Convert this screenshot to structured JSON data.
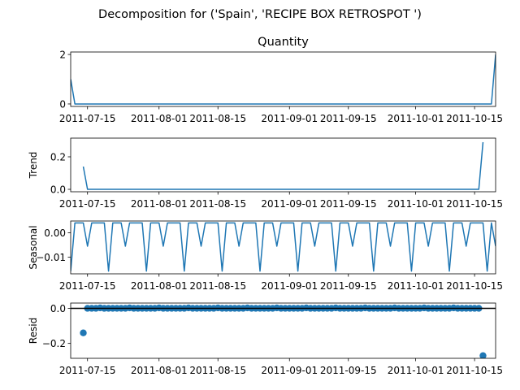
{
  "figure": {
    "suptitle": "Decomposition for ('Spain', 'RECIPE BOX RETROSPOT ')"
  },
  "colors": {
    "line": "#1f77b4",
    "zero_line": "#000000",
    "axes": "#000000"
  },
  "chart_data": [
    {
      "type": "line",
      "title": "Quantity",
      "ylabel": "",
      "x_range": [
        "2011-07-11",
        "2011-10-20"
      ],
      "ylim": [
        -0.1,
        2.1
      ],
      "yticks": [
        0,
        2
      ],
      "ytick_labels": [
        "0",
        "2"
      ],
      "xticks": [
        "2011-07-15",
        "2011-08-01",
        "2011-08-15",
        "2011-09-01",
        "2011-09-15",
        "2011-10-01",
        "2011-10-15"
      ],
      "xtick_labels": [
        "2011-07-15",
        "2011-08-01",
        "2011-08-15",
        "2011-09-01",
        "2011-09-15",
        "2011-10-01",
        "2011-10-15"
      ],
      "series": [
        {
          "x": [
            "2011-07-11",
            "2011-07-12",
            "2011-10-19",
            "2011-10-20"
          ],
          "y": [
            1,
            0,
            0,
            2
          ]
        }
      ]
    },
    {
      "type": "line",
      "title": "",
      "ylabel": "Trend",
      "x_range": [
        "2011-07-11",
        "2011-10-20"
      ],
      "ylim": [
        -0.015,
        0.315
      ],
      "yticks": [
        0.0,
        0.2
      ],
      "ytick_labels": [
        "0.0",
        "0.2"
      ],
      "xticks": [
        "2011-07-15",
        "2011-08-01",
        "2011-08-15",
        "2011-09-01",
        "2011-09-15",
        "2011-10-01",
        "2011-10-15"
      ],
      "xtick_labels": [
        "2011-07-15",
        "2011-08-01",
        "2011-08-15",
        "2011-09-01",
        "2011-09-15",
        "2011-10-01",
        "2011-10-15"
      ],
      "series": [
        {
          "x": [
            "2011-07-14",
            "2011-07-15",
            "2011-10-16",
            "2011-10-17"
          ],
          "y": [
            0.14,
            0,
            0,
            0.29
          ]
        }
      ]
    },
    {
      "type": "line",
      "title": "",
      "ylabel": "Seasonal",
      "x_range": [
        "2011-07-11",
        "2011-10-20"
      ],
      "ylim": [
        -0.0168,
        0.0048
      ],
      "yticks": [
        0.0,
        -0.01
      ],
      "ytick_labels": [
        "0.00",
        "−0.01"
      ],
      "xticks": [
        "2011-07-15",
        "2011-08-01",
        "2011-08-15",
        "2011-09-01",
        "2011-09-15",
        "2011-10-01",
        "2011-10-15"
      ],
      "xtick_labels": [
        "2011-07-15",
        "2011-08-01",
        "2011-08-15",
        "2011-09-01",
        "2011-09-15",
        "2011-10-01",
        "2011-10-15"
      ],
      "series": [
        {
          "start": "2011-07-11",
          "step_days": 1,
          "y": [
            -0.0157,
            0.004,
            0.004,
            0.004,
            -0.0055,
            0.004,
            0.004,
            0.004,
            0.004,
            -0.0157,
            0.004,
            0.004,
            0.004,
            -0.0055,
            0.004,
            0.004,
            0.004,
            0.004,
            -0.0157,
            0.004,
            0.004,
            0.004,
            -0.0055,
            0.004,
            0.004,
            0.004,
            0.004,
            -0.0157,
            0.004,
            0.004,
            0.004,
            -0.0055,
            0.004,
            0.004,
            0.004,
            0.004,
            -0.0157,
            0.004,
            0.004,
            0.004,
            -0.0055,
            0.004,
            0.004,
            0.004,
            0.004,
            -0.0157,
            0.004,
            0.004,
            0.004,
            -0.0055,
            0.004,
            0.004,
            0.004,
            0.004,
            -0.0157,
            0.004,
            0.004,
            0.004,
            -0.0055,
            0.004,
            0.004,
            0.004,
            0.004,
            -0.0157,
            0.004,
            0.004,
            0.004,
            -0.0055,
            0.004,
            0.004,
            0.004,
            0.004,
            -0.0157,
            0.004,
            0.004,
            0.004,
            -0.0055,
            0.004,
            0.004,
            0.004,
            0.004,
            -0.0157,
            0.004,
            0.004,
            0.004,
            -0.0055,
            0.004,
            0.004,
            0.004,
            0.004,
            -0.0157,
            0.004,
            0.004,
            0.004,
            -0.0055,
            0.004,
            0.004,
            0.004,
            0.004,
            -0.0157,
            0.004,
            -0.0055
          ]
        }
      ]
    },
    {
      "type": "scatter",
      "title": "",
      "ylabel": "Resid",
      "x_range": [
        "2011-07-11",
        "2011-10-20"
      ],
      "ylim": [
        -0.285,
        0.03
      ],
      "yticks": [
        0.0,
        -0.2
      ],
      "ytick_labels": [
        "0.0",
        "−0.2"
      ],
      "zero_line": 0,
      "xticks": [
        "2011-07-15",
        "2011-08-01",
        "2011-08-15",
        "2011-09-01",
        "2011-09-15",
        "2011-10-01",
        "2011-10-15"
      ],
      "xtick_labels": [
        "2011-07-15",
        "2011-08-01",
        "2011-08-15",
        "2011-09-01",
        "2011-09-15",
        "2011-10-01",
        "2011-10-15"
      ],
      "series": [
        {
          "start": "2011-07-14",
          "step_days": 1,
          "outliers": {
            "2011-07-14": -0.14,
            "2011-10-17": -0.27
          },
          "y": [
            -0.14,
            0,
            0,
            0,
            0.0025,
            0,
            0,
            0,
            0,
            0,
            0,
            0.0025,
            0,
            0,
            0,
            0,
            0,
            0,
            0.0025,
            0,
            0,
            0,
            0,
            0,
            0,
            0.0025,
            0,
            0,
            0,
            0,
            0,
            0,
            0.0025,
            0,
            0,
            0,
            0,
            0,
            0,
            0.0025,
            0,
            0,
            0,
            0,
            0,
            0,
            0.0025,
            0,
            0,
            0,
            0,
            0,
            0,
            0.0025,
            0,
            0,
            0,
            0,
            0,
            0,
            0.0025,
            0,
            0,
            0,
            0,
            0,
            0,
            0.0025,
            0,
            0,
            0,
            0,
            0,
            0,
            0.0025,
            0,
            0,
            0,
            0,
            0,
            0,
            0.0025,
            0,
            0,
            0,
            0,
            0,
            0,
            0.0025,
            0,
            0,
            0,
            0,
            0,
            0,
            -0.27
          ]
        }
      ]
    }
  ]
}
